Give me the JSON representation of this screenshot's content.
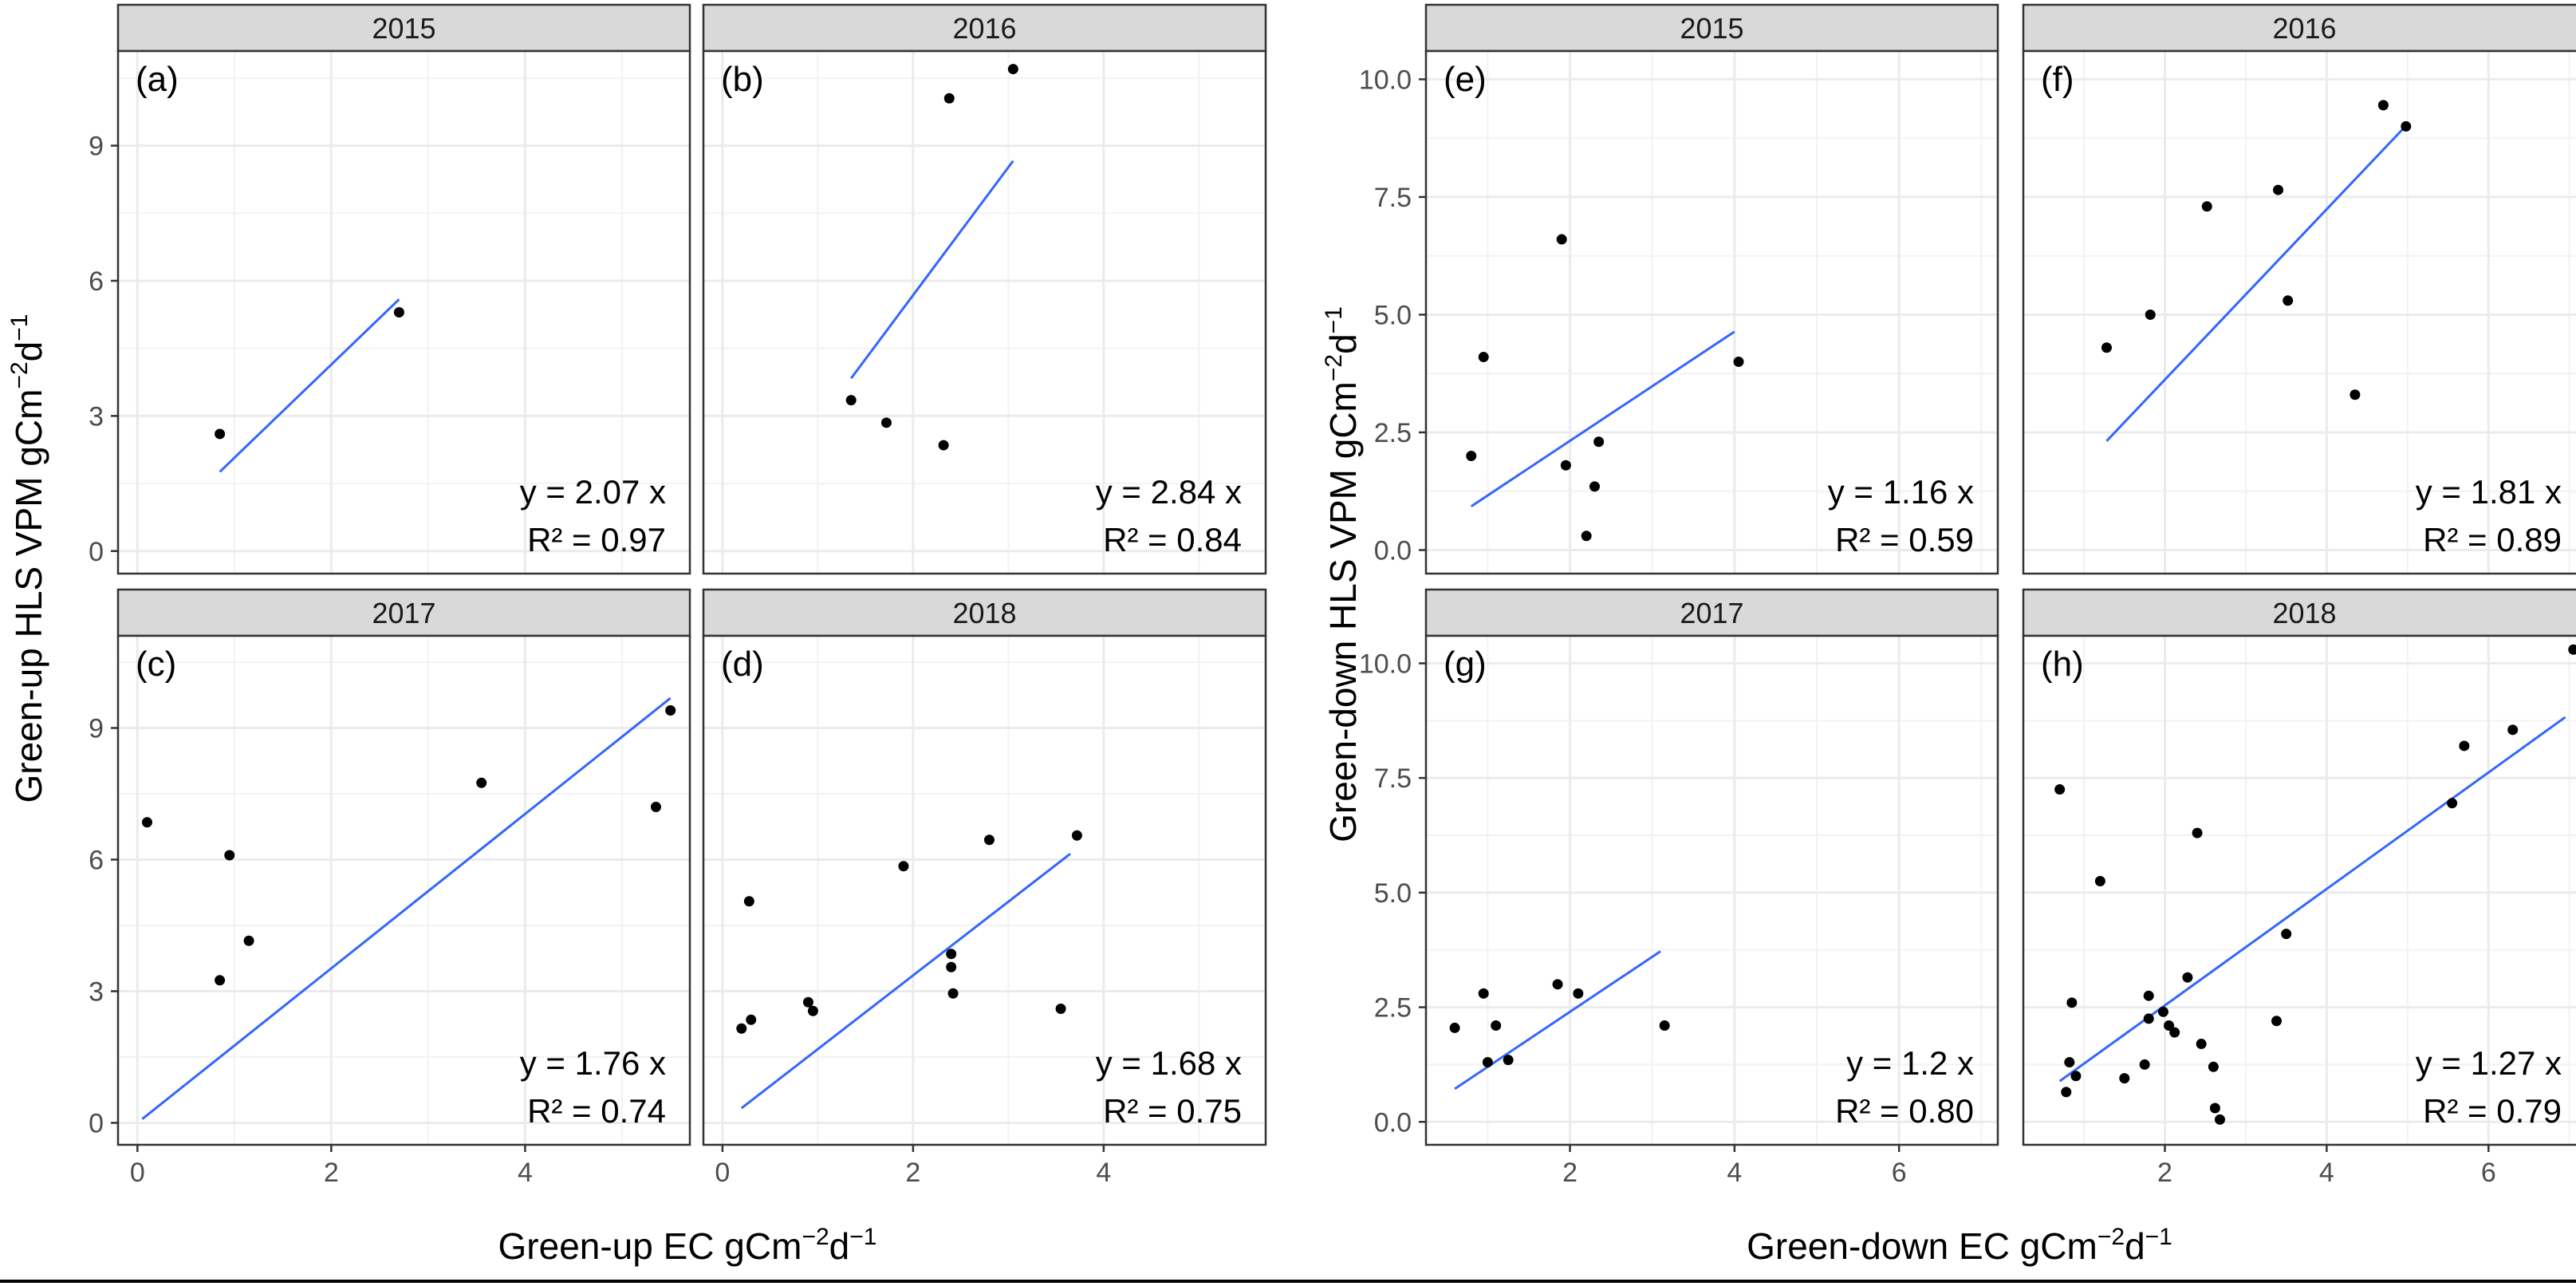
{
  "figure": {
    "left_axis": {
      "ylabel": "Green-up HLS VPM gCm",
      "ylabel_sup1": "−2",
      "ylabel_mid": "d",
      "ylabel_sup2": "−1",
      "xlabel": "Green-up EC gCm",
      "xlabel_sup1": "−2",
      "xlabel_mid": "d",
      "xlabel_sup2": "−1"
    },
    "right_axis": {
      "ylabel": "Green-down HLS VPM gCm",
      "ylabel_sup1": "−2",
      "ylabel_mid": "d",
      "ylabel_sup2": "−1",
      "xlabel": "Green-down EC gCm",
      "xlabel_sup1": "−2",
      "xlabel_mid": "d",
      "xlabel_sup2": "−1"
    }
  },
  "colors": {
    "line": "#3366FF",
    "point": "#000000",
    "strip": "#D9D9D9",
    "grid": "#EBEBEB",
    "border": "#333333"
  },
  "chart_data": [
    {
      "type": "scatter",
      "id": "a",
      "panel_label": "(a)",
      "strip": "2015",
      "xlim": [
        -0.2,
        5.7
      ],
      "ylim": [
        -0.5,
        11.1
      ],
      "xticks": [
        "0",
        "2",
        "4"
      ],
      "xtick_values": [
        0,
        2,
        4
      ],
      "yticks": [
        "0",
        "3",
        "6",
        "9"
      ],
      "ytick_values": [
        0,
        3,
        6,
        9
      ],
      "points": [
        [
          0.85,
          2.6
        ],
        [
          2.7,
          5.3
        ]
      ],
      "fit": {
        "slope": 2.07,
        "x_range": [
          0.85,
          2.7
        ]
      },
      "equation": "y = 2.07 x",
      "r2": "R² = 0.97"
    },
    {
      "type": "scatter",
      "id": "b",
      "panel_label": "(b)",
      "strip": "2016",
      "xlim": [
        -0.2,
        5.7
      ],
      "ylim": [
        -0.5,
        11.1
      ],
      "xticks": [
        "0",
        "2",
        "4"
      ],
      "xtick_values": [
        0,
        2,
        4
      ],
      "yticks": [
        "0",
        "3",
        "6",
        "9"
      ],
      "ytick_values": [
        0,
        3,
        6,
        9
      ],
      "points": [
        [
          1.35,
          3.35
        ],
        [
          1.72,
          2.85
        ],
        [
          2.32,
          2.35
        ],
        [
          2.38,
          10.05
        ],
        [
          3.05,
          10.7
        ]
      ],
      "fit": {
        "slope": 2.84,
        "x_range": [
          1.35,
          3.05
        ]
      },
      "equation": "y = 2.84 x",
      "r2": "R² = 0.84"
    },
    {
      "type": "scatter",
      "id": "c",
      "panel_label": "(c)",
      "strip": "2017",
      "xlim": [
        -0.2,
        5.7
      ],
      "ylim": [
        -0.5,
        11.1
      ],
      "xticks": [
        "0",
        "2",
        "4"
      ],
      "xtick_values": [
        0,
        2,
        4
      ],
      "yticks": [
        "0",
        "3",
        "6",
        "9"
      ],
      "ytick_values": [
        0,
        3,
        6,
        9
      ],
      "points": [
        [
          0.1,
          6.85
        ],
        [
          0.85,
          3.25
        ],
        [
          0.95,
          6.1
        ],
        [
          1.15,
          4.15
        ],
        [
          3.55,
          7.75
        ],
        [
          5.35,
          7.2
        ],
        [
          5.5,
          9.4
        ]
      ],
      "fit": {
        "slope": 1.76,
        "x_range": [
          0.05,
          5.5
        ]
      },
      "equation": "y = 1.76 x",
      "r2": "R² = 0.74"
    },
    {
      "type": "scatter",
      "id": "d",
      "panel_label": "(d)",
      "strip": "2018",
      "xlim": [
        -0.2,
        5.7
      ],
      "ylim": [
        -0.5,
        11.1
      ],
      "xticks": [
        "0",
        "2",
        "4"
      ],
      "xtick_values": [
        0,
        2,
        4
      ],
      "yticks": [
        "0",
        "3",
        "6",
        "9"
      ],
      "ytick_values": [
        0,
        3,
        6,
        9
      ],
      "points": [
        [
          0.2,
          2.15
        ],
        [
          0.28,
          5.05
        ],
        [
          0.3,
          2.35
        ],
        [
          0.9,
          2.75
        ],
        [
          0.95,
          2.55
        ],
        [
          1.9,
          5.85
        ],
        [
          2.4,
          3.85
        ],
        [
          2.4,
          3.55
        ],
        [
          2.42,
          2.95
        ],
        [
          2.8,
          6.45
        ],
        [
          3.55,
          2.6
        ],
        [
          3.72,
          6.55
        ]
      ],
      "fit": {
        "slope": 1.68,
        "x_range": [
          0.2,
          3.65
        ]
      },
      "equation": "y = 1.68 x",
      "r2": "R² = 0.75"
    },
    {
      "type": "scatter",
      "id": "e",
      "panel_label": "(e)",
      "strip": "2015",
      "xlim": [
        0.25,
        7.2
      ],
      "ylim": [
        -0.5,
        10.6
      ],
      "xticks": [
        "2",
        "4",
        "6"
      ],
      "xtick_values": [
        2,
        4,
        6
      ],
      "yticks": [
        "0.0",
        "2.5",
        "5.0",
        "7.5",
        "10.0"
      ],
      "ytick_values": [
        0,
        2.5,
        5,
        7.5,
        10
      ],
      "points": [
        [
          0.8,
          2.0
        ],
        [
          0.95,
          4.1
        ],
        [
          1.9,
          6.6
        ],
        [
          1.95,
          1.8
        ],
        [
          2.2,
          0.3
        ],
        [
          2.3,
          1.35
        ],
        [
          2.35,
          2.3
        ],
        [
          4.05,
          4.0
        ]
      ],
      "fit": {
        "slope": 1.16,
        "x_range": [
          0.8,
          4.0
        ]
      },
      "equation": "y = 1.16 x",
      "r2": "R² = 0.59"
    },
    {
      "type": "scatter",
      "id": "f",
      "panel_label": "(f)",
      "strip": "2016",
      "xlim": [
        0.25,
        7.2
      ],
      "ylim": [
        -0.5,
        10.6
      ],
      "xticks": [
        "2",
        "4",
        "6"
      ],
      "xtick_values": [
        2,
        4,
        6
      ],
      "yticks": [
        "0.0",
        "2.5",
        "5.0",
        "7.5",
        "10.0"
      ],
      "ytick_values": [
        0,
        2.5,
        5,
        7.5,
        10
      ],
      "points": [
        [
          1.28,
          4.3
        ],
        [
          1.82,
          5.0
        ],
        [
          2.52,
          7.3
        ],
        [
          3.4,
          7.65
        ],
        [
          3.52,
          5.3
        ],
        [
          4.35,
          3.3
        ],
        [
          4.7,
          9.45
        ],
        [
          4.98,
          9.0
        ]
      ],
      "fit": {
        "slope": 1.81,
        "x_range": [
          1.28,
          4.98
        ]
      },
      "equation": "y = 1.81 x",
      "r2": "R² = 0.89"
    },
    {
      "type": "scatter",
      "id": "g",
      "panel_label": "(g)",
      "strip": "2017",
      "xlim": [
        0.25,
        7.2
      ],
      "ylim": [
        -0.5,
        10.6
      ],
      "xticks": [
        "2",
        "4",
        "6"
      ],
      "xtick_values": [
        2,
        4,
        6
      ],
      "yticks": [
        "0.0",
        "2.5",
        "5.0",
        "7.5",
        "10.0"
      ],
      "ytick_values": [
        0,
        2.5,
        5,
        7.5,
        10
      ],
      "points": [
        [
          0.6,
          2.05
        ],
        [
          0.95,
          2.8
        ],
        [
          1.0,
          1.3
        ],
        [
          1.1,
          2.1
        ],
        [
          1.25,
          1.35
        ],
        [
          1.85,
          3.0
        ],
        [
          2.1,
          2.8
        ],
        [
          3.15,
          2.1
        ]
      ],
      "fit": {
        "slope": 1.2,
        "x_range": [
          0.6,
          3.1
        ]
      },
      "equation": "y = 1.2 x",
      "r2": "R² = 0.80"
    },
    {
      "type": "scatter",
      "id": "h",
      "panel_label": "(h)",
      "strip": "2018",
      "xlim": [
        0.25,
        7.2
      ],
      "ylim": [
        -0.5,
        10.6
      ],
      "xticks": [
        "2",
        "4",
        "6"
      ],
      "xtick_values": [
        2,
        4,
        6
      ],
      "yticks": [
        "0.0",
        "2.5",
        "5.0",
        "7.5",
        "10.0"
      ],
      "ytick_values": [
        0,
        2.5,
        5,
        7.5,
        10
      ],
      "points": [
        [
          0.7,
          7.25
        ],
        [
          0.78,
          0.65
        ],
        [
          0.82,
          1.3
        ],
        [
          0.85,
          2.6
        ],
        [
          0.9,
          1.0
        ],
        [
          1.2,
          5.25
        ],
        [
          1.5,
          0.95
        ],
        [
          1.75,
          1.25
        ],
        [
          1.8,
          2.25
        ],
        [
          1.8,
          2.75
        ],
        [
          1.98,
          2.4
        ],
        [
          2.05,
          2.1
        ],
        [
          2.12,
          1.95
        ],
        [
          2.28,
          3.15
        ],
        [
          2.4,
          6.3
        ],
        [
          2.45,
          1.7
        ],
        [
          2.6,
          1.2
        ],
        [
          2.62,
          0.3
        ],
        [
          2.68,
          0.05
        ],
        [
          3.38,
          2.2
        ],
        [
          3.5,
          4.1
        ],
        [
          5.55,
          6.95
        ],
        [
          5.7,
          8.2
        ],
        [
          6.3,
          8.55
        ],
        [
          7.05,
          10.3
        ]
      ],
      "fit": {
        "slope": 1.27,
        "x_range": [
          0.7,
          6.95
        ]
      },
      "equation": "y = 1.27 x",
      "r2": "R² = 0.79"
    }
  ]
}
